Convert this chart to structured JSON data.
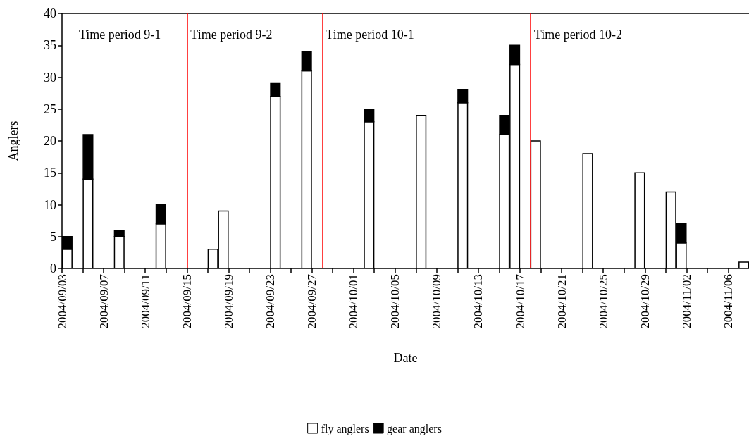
{
  "chart_data": {
    "type": "bar",
    "stacked": true,
    "xlabel": "Date",
    "ylabel": "Anglers",
    "x": [
      "2004-09-03T12:00",
      "2004-09-05T12:00",
      "2004-09-08T12:00",
      "2004-09-12T12:00",
      "2004-09-17T12:00",
      "2004-09-18T12:00",
      "2004-09-23T12:00",
      "2004-09-26T12:00",
      "2004-10-02T12:00",
      "2004-10-07T12:00",
      "2004-10-11T12:00",
      "2004-10-15T12:00",
      "2004-10-16T12:00",
      "2004-10-18T12:00",
      "2004-10-23T12:00",
      "2004-10-28T12:00",
      "2004-10-31T12:00",
      "2004-11-01T12:00",
      "2004-11-07T12:00"
    ],
    "series": [
      {
        "name": "fly anglers",
        "color": "#ffffff",
        "values": [
          3,
          14,
          5,
          7,
          3,
          9,
          27,
          31,
          23,
          24,
          26,
          21,
          32,
          20,
          18,
          15,
          12,
          4,
          1
        ]
      },
      {
        "name": "gear anglers",
        "color": "#000000",
        "values": [
          2,
          7,
          1,
          3,
          0,
          0,
          2,
          3,
          2,
          0,
          2,
          3,
          3,
          0,
          0,
          0,
          0,
          3,
          0
        ]
      }
    ],
    "xlim": [
      "2004-09-03",
      "2004-11-08"
    ],
    "xticks": [
      {
        "value": "2004-09-03",
        "label": "2004/09/03"
      },
      {
        "value": "2004-09-05",
        "label": null
      },
      {
        "value": "2004-09-07",
        "label": "2004/09/07"
      },
      {
        "value": "2004-09-09",
        "label": null
      },
      {
        "value": "2004-09-11",
        "label": "2004/09/11"
      },
      {
        "value": "2004-09-13",
        "label": null
      },
      {
        "value": "2004-09-15",
        "label": "2004/09/15"
      },
      {
        "value": "2004-09-17",
        "label": null
      },
      {
        "value": "2004-09-19",
        "label": "2004/09/19"
      },
      {
        "value": "2004-09-21",
        "label": null
      },
      {
        "value": "2004-09-23",
        "label": "2004/09/23"
      },
      {
        "value": "2004-09-25",
        "label": null
      },
      {
        "value": "2004-09-27",
        "label": "2004/09/27"
      },
      {
        "value": "2004-09-29",
        "label": null
      },
      {
        "value": "2004-10-01",
        "label": "2004/10/01"
      },
      {
        "value": "2004-10-03",
        "label": null
      },
      {
        "value": "2004-10-05",
        "label": "2004/10/05"
      },
      {
        "value": "2004-10-07",
        "label": null
      },
      {
        "value": "2004-10-09",
        "label": "2004/10/09"
      },
      {
        "value": "2004-10-11",
        "label": null
      },
      {
        "value": "2004-10-13",
        "label": "2004/10/13"
      },
      {
        "value": "2004-10-15",
        "label": null
      },
      {
        "value": "2004-10-17",
        "label": "2004/10/17"
      },
      {
        "value": "2004-10-19",
        "label": null
      },
      {
        "value": "2004-10-21",
        "label": "2004/10/21"
      },
      {
        "value": "2004-10-23",
        "label": null
      },
      {
        "value": "2004-10-25",
        "label": "2004/10/25"
      },
      {
        "value": "2004-10-27",
        "label": null
      },
      {
        "value": "2004-10-29",
        "label": "2004/10/29"
      },
      {
        "value": "2004-10-31",
        "label": null
      },
      {
        "value": "2004-11-02",
        "label": "2004/11/02"
      },
      {
        "value": "2004-11-04",
        "label": null
      },
      {
        "value": "2004-11-06",
        "label": "2004/11/06"
      }
    ],
    "ylim": [
      0,
      40
    ],
    "yticks": [
      0,
      5,
      10,
      15,
      20,
      25,
      30,
      35,
      40
    ],
    "grid": false,
    "legend": "bottom",
    "ref_lines": [
      {
        "axis": "x",
        "value": "2004-09-15",
        "color": "#ff0000"
      },
      {
        "axis": "x",
        "value": "2004-09-28",
        "color": "#ff0000"
      },
      {
        "axis": "x",
        "value": "2004-10-18",
        "color": "#ff0000"
      }
    ],
    "annotations": [
      "Time period 9-1",
      "Time period 9-2",
      "Time period 10-1",
      "Time period 10-2"
    ]
  }
}
